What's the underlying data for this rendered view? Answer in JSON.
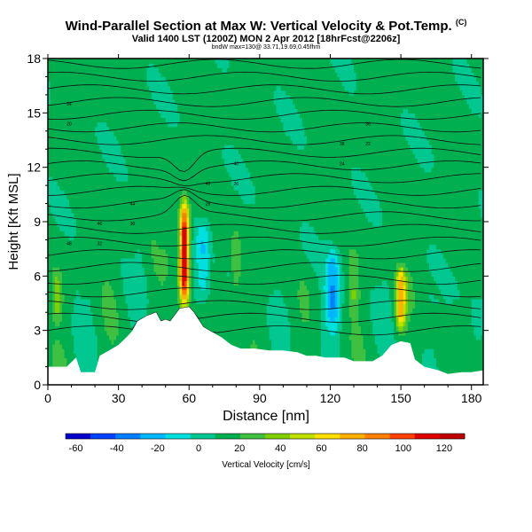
{
  "header": {
    "title": "Wind-Parallel Section at Max W: Vertical Velocity & Pot.Temp.",
    "title_mark": "(C)",
    "subtitle": "Valid 1400 LST (1200Z) MON 2 Apr 2012 [18hrFcst@2206z]",
    "subsubtitle": "bndW max=130@ 33.71,19.69,0.45fhm"
  },
  "chart_data": {
    "type": "heatmap",
    "xlabel": "Distance [nm]",
    "ylabel": "Height [Kft MSL]",
    "xlim": [
      0,
      185
    ],
    "ylim": [
      0,
      18
    ],
    "x_ticks": [
      0,
      30,
      60,
      90,
      120,
      150,
      180
    ],
    "y_ticks": [
      0,
      3,
      6,
      9,
      12,
      15,
      18
    ],
    "colorbar": {
      "label": "Vertical Velocity [cm/s]",
      "ticks": [
        -60,
        -40,
        -20,
        0,
        20,
        40,
        60,
        80,
        100,
        120
      ],
      "range": [
        -65,
        130
      ],
      "colors": [
        "#0000cc",
        "#0040ff",
        "#0080ff",
        "#00b8ff",
        "#00e0e0",
        "#00c890",
        "#00b050",
        "#40c040",
        "#80d000",
        "#c0e000",
        "#ffe000",
        "#ffb000",
        "#ff8000",
        "#ff4000",
        "#e00000",
        "#c00000"
      ]
    },
    "updrafts": [
      {
        "x": 58,
        "z_min": 4.2,
        "z_max": 10.2,
        "peak": 125
      },
      {
        "x": 150,
        "z_min": 3.0,
        "z_max": 6.5,
        "peak": 75
      },
      {
        "x": 80,
        "z_min": 4.8,
        "z_max": 8.5,
        "peak": 30
      },
      {
        "x": 130,
        "z_min": 4.0,
        "z_max": 7.5,
        "peak": 30
      },
      {
        "x": 4,
        "z_min": 3.5,
        "z_max": 6.5,
        "peak": 35
      }
    ],
    "downdrafts": [
      {
        "x": 121,
        "z_min": 3.0,
        "z_max": 7.5,
        "peak": -25
      },
      {
        "x": 66,
        "z_min": 4.5,
        "z_max": 9.0,
        "peak": -15
      }
    ],
    "terrain_kft": [
      [
        0,
        1.0
      ],
      [
        8,
        1.0
      ],
      [
        12,
        1.5
      ],
      [
        14,
        0.7
      ],
      [
        20,
        0.7
      ],
      [
        22,
        1.6
      ],
      [
        26,
        1.9
      ],
      [
        30,
        2.2
      ],
      [
        34,
        2.7
      ],
      [
        36,
        3.0
      ],
      [
        38,
        3.5
      ],
      [
        42,
        3.8
      ],
      [
        46,
        4.0
      ],
      [
        48,
        3.5
      ],
      [
        50,
        3.6
      ],
      [
        52,
        3.5
      ],
      [
        56,
        4.2
      ],
      [
        60,
        4.3
      ],
      [
        62,
        4.0
      ],
      [
        64,
        3.6
      ],
      [
        66,
        3.2
      ],
      [
        70,
        2.9
      ],
      [
        74,
        2.6
      ],
      [
        78,
        2.2
      ],
      [
        82,
        2.0
      ],
      [
        88,
        2.0
      ],
      [
        94,
        1.9
      ],
      [
        100,
        1.9
      ],
      [
        106,
        1.8
      ],
      [
        110,
        1.6
      ],
      [
        114,
        1.6
      ],
      [
        118,
        1.5
      ],
      [
        122,
        1.5
      ],
      [
        126,
        1.5
      ],
      [
        130,
        1.3
      ],
      [
        134,
        1.3
      ],
      [
        138,
        1.3
      ],
      [
        142,
        1.6
      ],
      [
        146,
        2.2
      ],
      [
        150,
        2.4
      ],
      [
        154,
        2.3
      ],
      [
        156,
        1.4
      ],
      [
        160,
        1.0
      ],
      [
        166,
        0.8
      ],
      [
        170,
        0.6
      ],
      [
        176,
        0.7
      ],
      [
        180,
        0.7
      ],
      [
        185,
        0.8
      ]
    ],
    "isentrope_labels": [
      "48",
      "46",
      "44",
      "42",
      "40",
      "38",
      "36",
      "34",
      "32",
      "30",
      "28",
      "26",
      "24",
      "22",
      "20"
    ]
  }
}
